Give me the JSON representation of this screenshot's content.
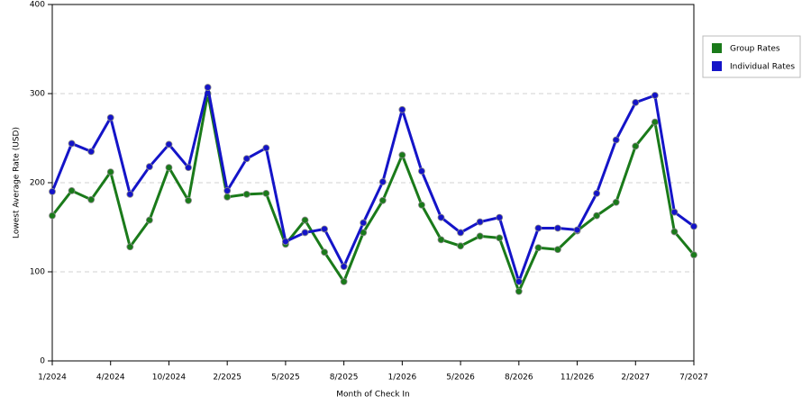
{
  "chart_data": {
    "type": "line",
    "x_label": "Month of Check In",
    "y_label": "Lowest Average Rate (USD)",
    "categories": [
      "1/2024",
      null,
      null,
      "4/2024",
      null,
      null,
      "10/2024",
      null,
      null,
      "2/2025",
      null,
      null,
      "5/2025",
      null,
      null,
      "8/2025",
      null,
      null,
      "1/2026",
      null,
      null,
      "5/2026",
      null,
      null,
      "8/2026",
      null,
      null,
      "11/2026",
      null,
      null,
      "2/2027",
      null,
      null,
      "7/2027"
    ],
    "series": [
      {
        "name": "Group Rates",
        "color": "#1a7a1a",
        "values": [
          163,
          191,
          181,
          212,
          128,
          158,
          217,
          180,
          300,
          184,
          187,
          188,
          131,
          158,
          122,
          89,
          144,
          180,
          231,
          175,
          136,
          129,
          140,
          138,
          78,
          127,
          125,
          146,
          163,
          178,
          241,
          268,
          145,
          119
        ]
      },
      {
        "name": "Individual Rates",
        "color": "#1414c8",
        "values": [
          190,
          244,
          235,
          273,
          187,
          218,
          243,
          217,
          307,
          191,
          227,
          239,
          134,
          144,
          148,
          106,
          155,
          201,
          282,
          213,
          161,
          144,
          156,
          161,
          89,
          149,
          149,
          147,
          188,
          248,
          290,
          298,
          167,
          151
        ]
      }
    ],
    "ylim": [
      0,
      400
    ],
    "yticks": [
      0,
      100,
      200,
      300,
      400
    ],
    "grid": true,
    "legend": "right"
  }
}
